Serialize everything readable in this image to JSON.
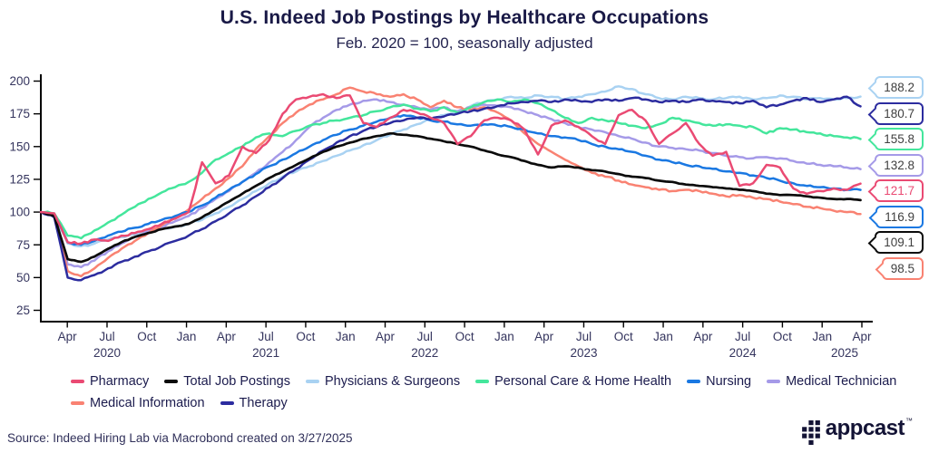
{
  "header": {
    "title": "U.S. Indeed Job Postings by Healthcare Occupations",
    "subtitle": "Feb. 2020 = 100, seasonally adjusted"
  },
  "chart_data": {
    "type": "line",
    "title": "U.S. Indeed Job Postings by Healthcare Occupations",
    "subtitle": "Feb. 2020 = 100, seasonally adjusted",
    "x_unit": "month",
    "x_start": "Feb 2020",
    "x_end": "Mar 2025",
    "grid": false,
    "legend_position": "bottom",
    "ylim": [
      25,
      200
    ],
    "yticks": [
      200,
      175,
      150,
      125,
      100,
      75,
      50,
      25
    ],
    "x_ticks": [
      {
        "label": "Apr",
        "month": 2
      },
      {
        "label": "Jul",
        "month": 5
      },
      {
        "label": "Oct",
        "month": 8
      },
      {
        "label": "Jan",
        "month": 11
      },
      {
        "label": "Apr",
        "month": 14
      },
      {
        "label": "Jul",
        "month": 17
      },
      {
        "label": "Oct",
        "month": 20
      },
      {
        "label": "Jan",
        "month": 23
      },
      {
        "label": "Apr",
        "month": 26
      },
      {
        "label": "Jul",
        "month": 29
      },
      {
        "label": "Oct",
        "month": 32
      },
      {
        "label": "Jan",
        "month": 35
      },
      {
        "label": "Apr",
        "month": 38
      },
      {
        "label": "Jul",
        "month": 41
      },
      {
        "label": "Oct",
        "month": 44
      },
      {
        "label": "Jan",
        "month": 47
      },
      {
        "label": "Apr",
        "month": 50
      },
      {
        "label": "Jul",
        "month": 53
      },
      {
        "label": "Oct",
        "month": 56
      },
      {
        "label": "Jan",
        "month": 59
      },
      {
        "label": "Apr",
        "month": 62
      }
    ],
    "year_labels": [
      {
        "label": "2020",
        "month": 5
      },
      {
        "label": "2021",
        "month": 17
      },
      {
        "label": "2022",
        "month": 29
      },
      {
        "label": "2023",
        "month": 41
      },
      {
        "label": "2024",
        "month": 53
      },
      {
        "label": "2025",
        "month": 60.7
      }
    ],
    "series": [
      {
        "name": "Physicians & Surgeons",
        "color": "#a9d2f2",
        "values": [
          100,
          98,
          76,
          74,
          76,
          79,
          81,
          83,
          85,
          87,
          89,
          91,
          94,
          99,
          104,
          110,
          116,
          122,
          127,
          131,
          135,
          139,
          143,
          147,
          151,
          155,
          159,
          163,
          167,
          171,
          174,
          177,
          181,
          184,
          186,
          188,
          187,
          189,
          188,
          186,
          188,
          190,
          192,
          196,
          194,
          190,
          187,
          186,
          188,
          187,
          186,
          187,
          188,
          186,
          187,
          189,
          188,
          186,
          187,
          186,
          187,
          188.2
        ]
      },
      {
        "name": "Medical Technician",
        "color": "#a59ae8",
        "values": [
          100,
          97,
          60,
          58,
          63,
          70,
          76,
          81,
          85,
          89,
          93,
          97,
          103,
          110,
          116,
          123,
          130,
          138,
          146,
          155,
          165,
          172,
          178,
          182,
          185,
          186,
          184,
          182,
          180,
          178,
          180,
          177,
          180,
          182,
          181,
          180,
          177,
          174,
          171,
          168,
          165,
          163,
          161,
          158,
          156,
          153,
          150,
          149,
          148,
          147,
          145,
          143,
          142,
          141,
          142,
          141,
          139,
          137,
          136,
          135,
          134,
          132.8
        ]
      },
      {
        "name": "Medical Information",
        "color": "#f98272",
        "values": [
          100,
          98,
          55,
          51,
          57,
          65,
          72,
          78,
          84,
          90,
          96,
          102,
          110,
          118,
          126,
          135,
          148,
          158,
          168,
          176,
          182,
          186,
          190,
          195,
          192,
          190,
          188,
          190,
          186,
          180,
          185,
          180,
          178,
          180,
          176,
          170,
          160,
          152,
          146,
          140,
          135,
          130,
          127,
          124,
          121,
          119,
          117,
          116,
          117,
          116,
          114,
          112,
          113,
          111,
          110,
          108,
          106,
          104,
          103,
          101,
          100,
          98.5
        ]
      },
      {
        "name": "Personal Care & Home Health",
        "color": "#44e69c",
        "values": [
          100,
          99,
          82,
          80,
          86,
          92,
          98,
          104,
          110,
          115,
          119,
          123,
          130,
          140,
          145,
          150,
          157,
          160,
          158,
          162,
          166,
          168,
          170,
          172,
          174,
          177,
          180,
          182,
          179,
          177,
          180,
          176,
          180,
          184,
          186,
          184,
          186,
          183,
          178,
          172,
          168,
          172,
          170,
          168,
          166,
          164,
          167,
          172,
          170,
          168,
          166,
          167,
          166,
          165,
          160,
          164,
          163,
          161,
          160,
          158,
          157,
          155.8
        ]
      },
      {
        "name": "Nursing",
        "color": "#1a78e2",
        "values": [
          100,
          98,
          77,
          75,
          78,
          82,
          85,
          88,
          91,
          94,
          97,
          100,
          105,
          111,
          117,
          123,
          129,
          135,
          140,
          145,
          150,
          155,
          159,
          163,
          166,
          169,
          172,
          174,
          172,
          170,
          169,
          167,
          166,
          167,
          166,
          165,
          163,
          160,
          158,
          157,
          155,
          152,
          150,
          148,
          146,
          143,
          140,
          138,
          136,
          135,
          133,
          131,
          130,
          128,
          126,
          124,
          122,
          120,
          119,
          118,
          117,
          116.9
        ]
      },
      {
        "name": "Therapy",
        "color": "#2c2c9f",
        "values": [
          100,
          96,
          50,
          48,
          52,
          57,
          62,
          66,
          70,
          74,
          78,
          82,
          87,
          93,
          99,
          105,
          112,
          119,
          126,
          133,
          140,
          147,
          153,
          158,
          162,
          165,
          168,
          170,
          172,
          171,
          173,
          175,
          177,
          179,
          181,
          183,
          184,
          185,
          184,
          186,
          185,
          184,
          186,
          185,
          187,
          186,
          184,
          185,
          184,
          186,
          185,
          184,
          183,
          185,
          180,
          182,
          185,
          187,
          184,
          186,
          188,
          180.7
        ]
      },
      {
        "name": "Total Job Postings",
        "color": "#0b0b0b",
        "values": [
          100,
          97,
          64,
          62,
          66,
          72,
          77,
          81,
          84,
          87,
          89,
          91,
          96,
          102,
          108,
          114,
          120,
          126,
          131,
          136,
          141,
          146,
          150,
          153,
          156,
          158,
          160,
          159,
          158,
          156,
          154,
          152,
          150,
          147,
          144,
          142,
          139,
          136,
          134,
          135,
          134,
          132,
          131,
          129,
          127,
          126,
          124,
          123,
          121,
          120,
          119,
          118,
          117,
          116,
          114,
          113,
          113,
          112,
          111,
          110,
          110,
          109.1
        ]
      },
      {
        "name": "Pharmacy",
        "color": "#ea4a73",
        "values": [
          100,
          99,
          77,
          76,
          79,
          78,
          82,
          84,
          87,
          91,
          95,
          100,
          138,
          122,
          128,
          150,
          145,
          155,
          175,
          186,
          188,
          190,
          187,
          189,
          168,
          165,
          172,
          178,
          176,
          172,
          168,
          152,
          158,
          170,
          172,
          170,
          163,
          144,
          166,
          170,
          165,
          158,
          152,
          174,
          178,
          170,
          152,
          160,
          168,
          152,
          143,
          146,
          120,
          122,
          136,
          134,
          118,
          114,
          116,
          118,
          117,
          121.7
        ]
      }
    ],
    "callouts": [
      {
        "value": "188.2",
        "series": "Physicians & Surgeons",
        "color": "#a9d2f2",
        "text_color": "#3f3f3f"
      },
      {
        "value": "180.7",
        "series": "Therapy",
        "color": "#2c2c9f",
        "text_color": "#3f3f3f"
      },
      {
        "value": "155.8",
        "series": "Personal Care & Home Health",
        "color": "#44e69c",
        "text_color": "#3f3f3f"
      },
      {
        "value": "132.8",
        "series": "Medical Technician",
        "color": "#a59ae8",
        "text_color": "#3f3f3f"
      },
      {
        "value": "121.7",
        "series": "Pharmacy",
        "color": "#ea4a73",
        "text_color": "#ea4a73"
      },
      {
        "value": "116.9",
        "series": "Nursing",
        "color": "#1a78e2",
        "text_color": "#3f3f3f"
      },
      {
        "value": "109.1",
        "series": "Total Job Postings",
        "color": "#0b0b0b",
        "text_color": "#3f3f3f"
      },
      {
        "value": "98.5",
        "series": "Medical Information",
        "color": "#f98272",
        "text_color": "#3f3f3f"
      }
    ]
  },
  "legend": {
    "rows": [
      [
        {
          "label": "Pharmacy",
          "color": "#ea4a73"
        },
        {
          "label": "Total Job Postings",
          "color": "#0b0b0b"
        },
        {
          "label": "Physicians & Surgeons",
          "color": "#a9d2f2"
        },
        {
          "label": "Personal Care & Home Health",
          "color": "#44e69c"
        },
        {
          "label": "Nursing",
          "color": "#1a78e2"
        },
        {
          "label": "Medical Technician",
          "color": "#a59ae8"
        }
      ],
      [
        {
          "label": "Medical Information",
          "color": "#f98272"
        },
        {
          "label": "Therapy",
          "color": "#2c2c9f"
        }
      ]
    ]
  },
  "footer": {
    "source": "Source: Indeed Hiring Lab via Macrobond created on 3/27/2025",
    "logo_text": "appcast",
    "logo_tm": "™"
  }
}
